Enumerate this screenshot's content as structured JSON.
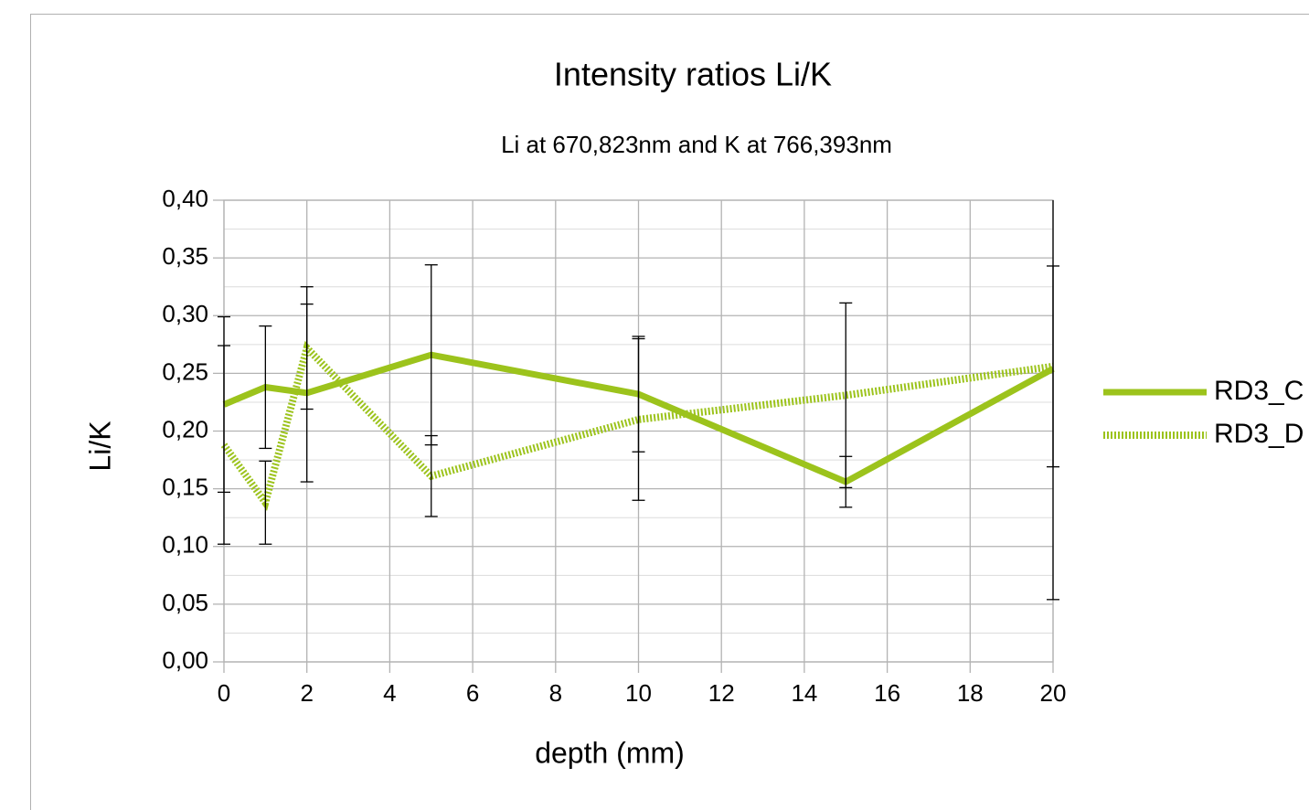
{
  "chart_data": {
    "type": "line",
    "title": "Intensity ratios Li/K",
    "subtitle": "Li at 670,823nm and K at 766,393nm",
    "x_label": "depth (mm)",
    "y_label": "Li/K",
    "x": [
      0,
      1,
      2,
      5,
      10,
      15,
      20
    ],
    "series": [
      {
        "name": "RD3_C",
        "color": "#9cc31c",
        "style": "solid",
        "values": [
          0.223,
          0.238,
          0.233,
          0.266,
          0.232,
          0.156,
          0.254
        ],
        "errors": [
          0.076,
          0.053,
          0.077,
          0.078,
          0.05,
          0.022,
          0.2
        ]
      },
      {
        "name": "RD3_D",
        "color": "#9cc31c",
        "style": "dashed",
        "values": [
          0.188,
          0.138,
          0.272,
          0.161,
          0.21,
          0.231,
          0.256
        ],
        "errors": [
          0.086,
          0.036,
          0.053,
          0.035,
          0.07,
          0.08,
          0.087
        ]
      }
    ],
    "xlim": [
      0,
      20
    ],
    "xticks": [
      0,
      2,
      4,
      6,
      8,
      10,
      12,
      14,
      16,
      18,
      20
    ],
    "ylim": [
      0,
      0.4
    ],
    "yticks": [
      {
        "value": 0,
        "label": "0,00"
      },
      {
        "value": 0.05,
        "label": "0,05"
      },
      {
        "value": 0.1,
        "label": "0,10"
      },
      {
        "value": 0.15,
        "label": "0,15"
      },
      {
        "value": 0.2,
        "label": "0,20"
      },
      {
        "value": 0.25,
        "label": "0,25"
      },
      {
        "value": 0.3,
        "label": "0,30"
      },
      {
        "value": 0.35,
        "label": "0,35"
      },
      {
        "value": 0.4,
        "label": "0,40"
      }
    ],
    "grid": true,
    "minor_grid": true,
    "legend": "right"
  }
}
